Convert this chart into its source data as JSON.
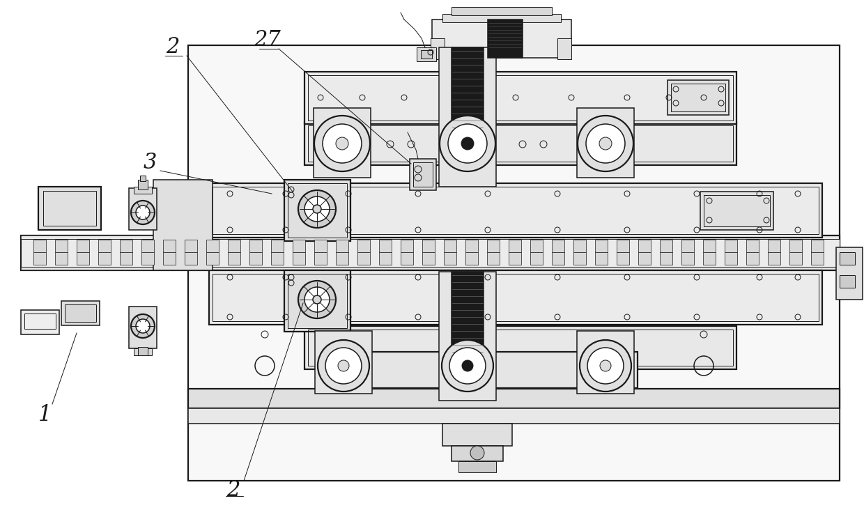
{
  "bg_color": "#ffffff",
  "lc": "#1a1a1a",
  "lw_thin": 0.7,
  "lw_med": 1.1,
  "lw_thick": 1.6,
  "lw_vthick": 2.0
}
